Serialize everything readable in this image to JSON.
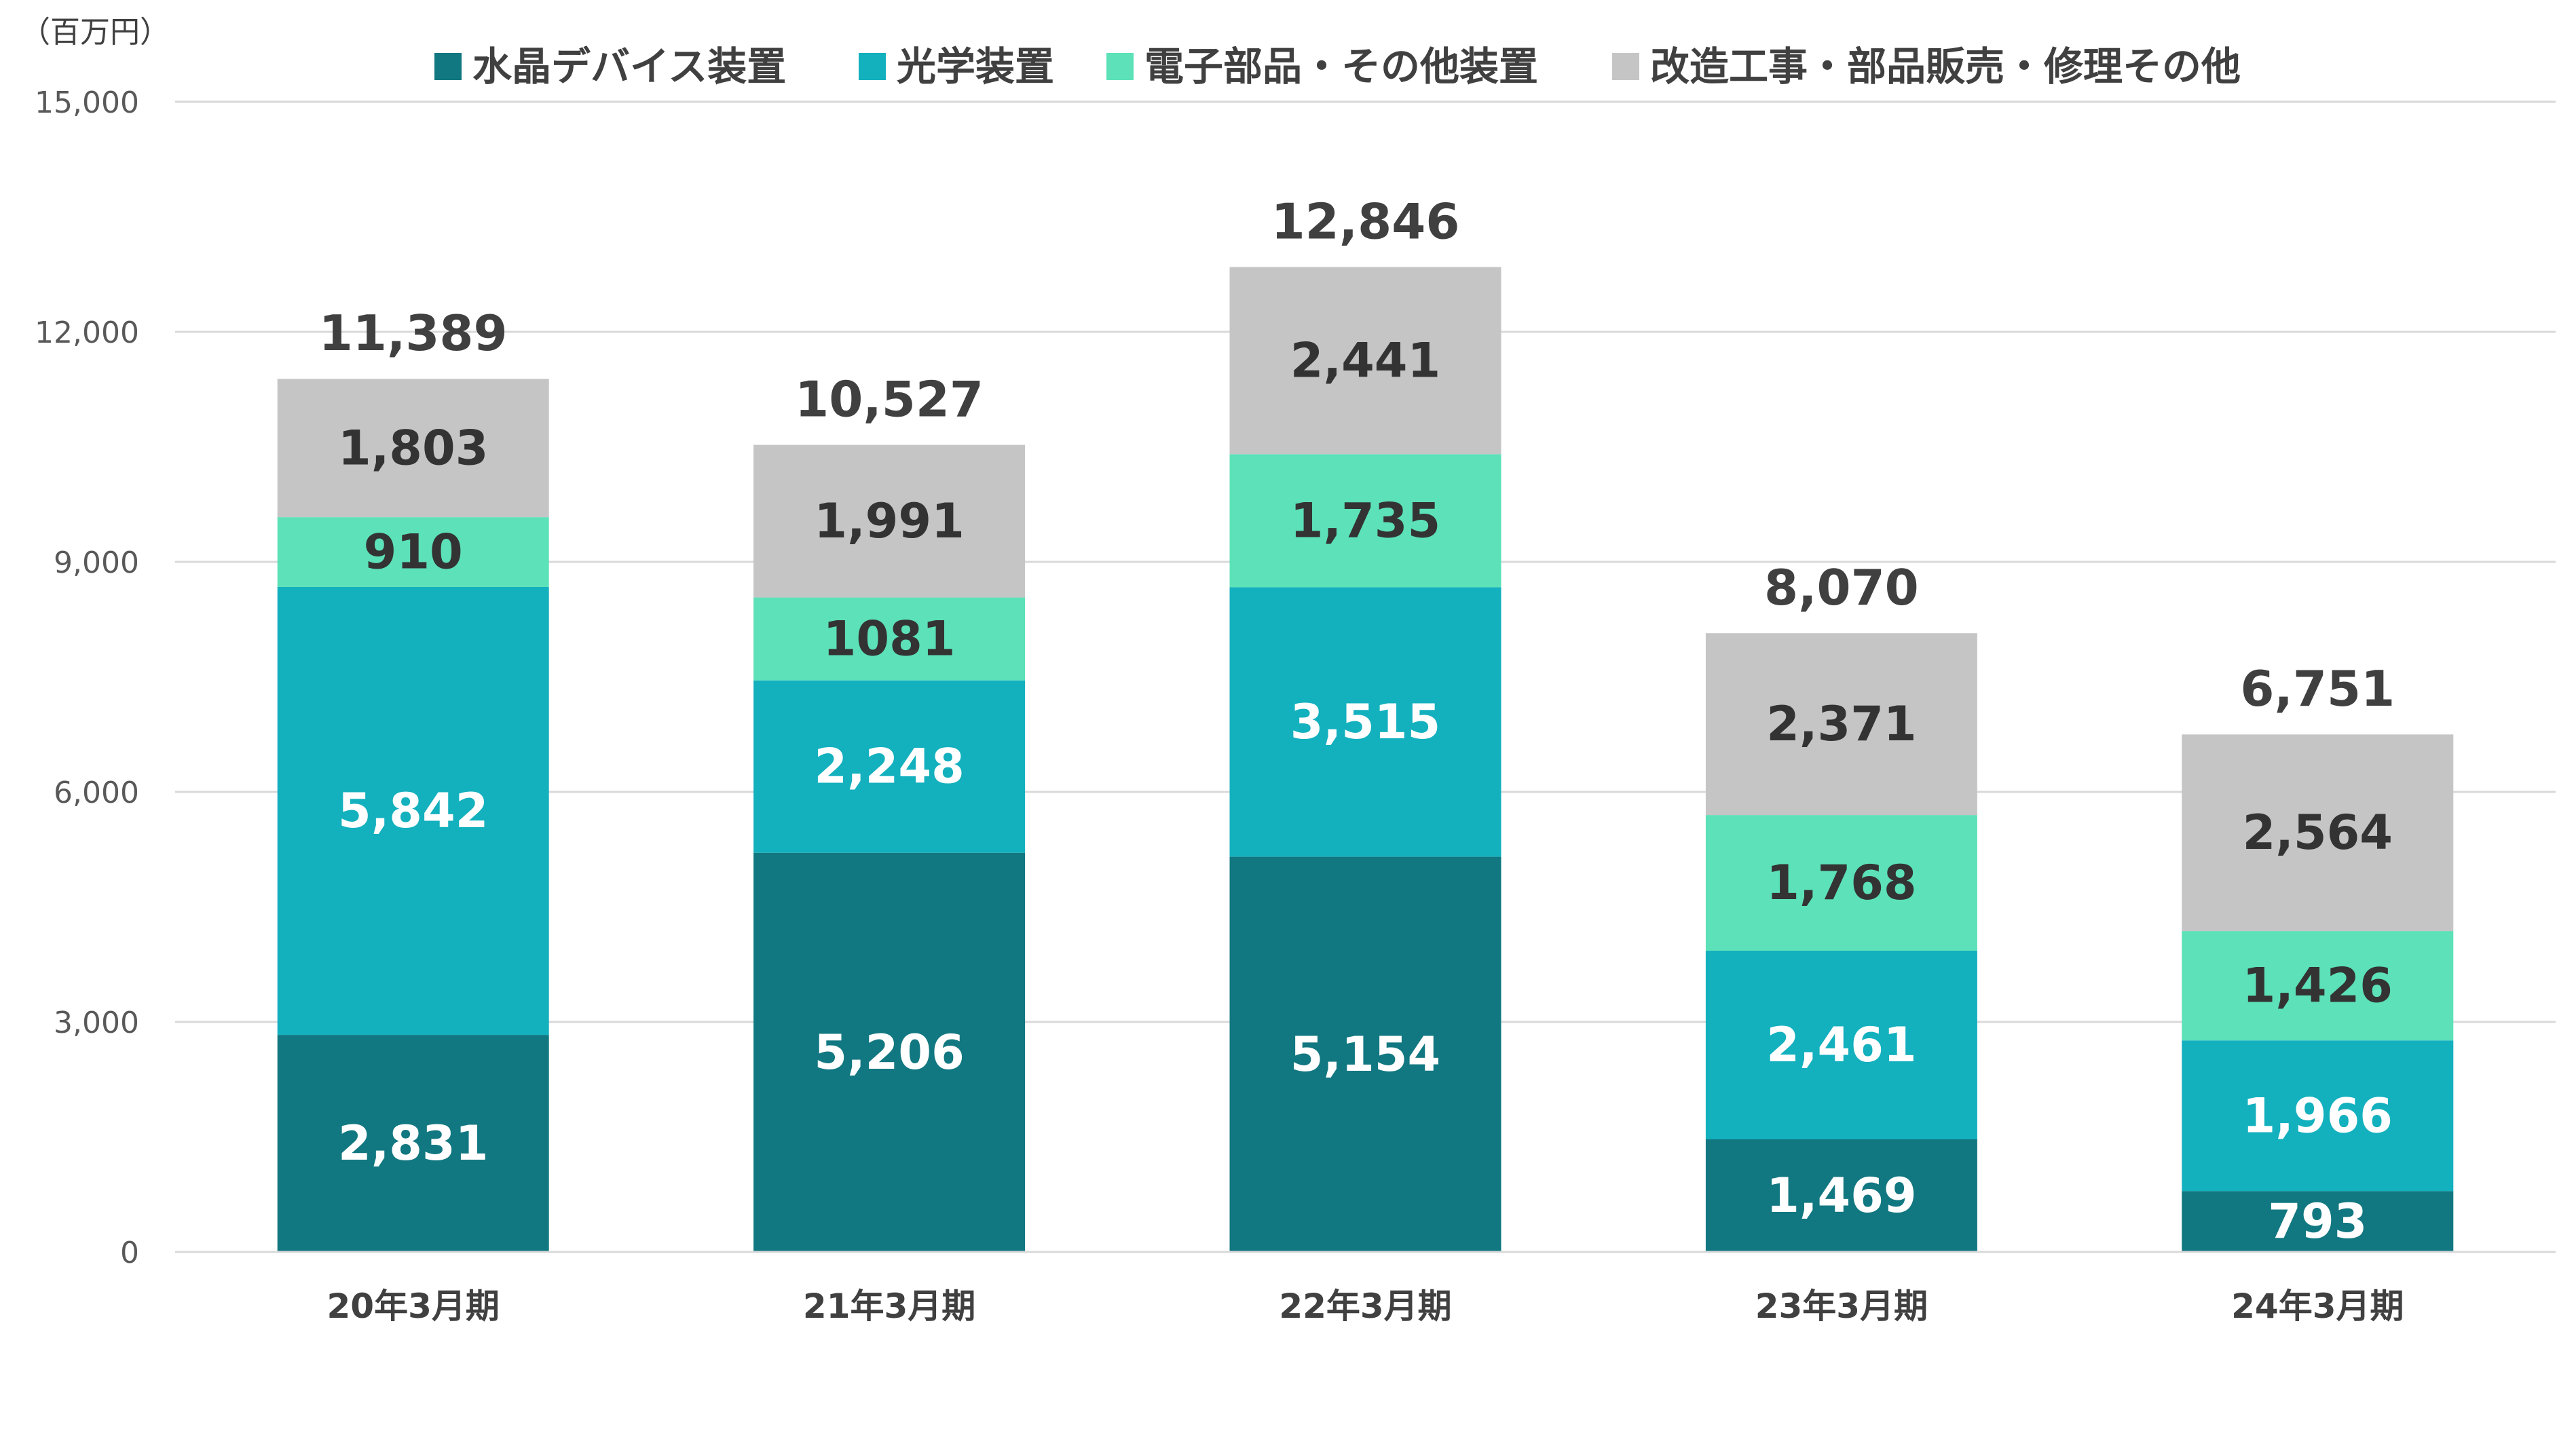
{
  "chart_data": {
    "type": "bar",
    "stacked": true,
    "unit_label": "（百万円）",
    "categories": [
      "20年3月期",
      "21年3月期",
      "22年3月期",
      "23年3月期",
      "24年3月期"
    ],
    "series": [
      {
        "name": "水晶デバイス装置",
        "color": "#117780",
        "label_color": "#ffffff",
        "values": [
          2831,
          5206,
          5154,
          1469,
          793
        ],
        "labels": [
          "2,831",
          "5,206",
          "5,154",
          "1,469",
          "793"
        ]
      },
      {
        "name": "光学装置",
        "color": "#13b0be",
        "label_color": "#ffffff",
        "values": [
          5842,
          2248,
          3515,
          2461,
          1966
        ],
        "labels": [
          "5,842",
          "2,248",
          "3,515",
          "2,461",
          "1,966"
        ]
      },
      {
        "name": "電子部品・その他装置",
        "color": "#5ce1b8",
        "label_color": "#333333",
        "values": [
          910,
          1081,
          1735,
          1768,
          1426
        ],
        "labels": [
          "910",
          "1081",
          "1,735",
          "1,768",
          "1,426"
        ]
      },
      {
        "name": "改造工事・部品販売・修理その他",
        "color": "#c5c5c5",
        "label_color": "#333333",
        "values": [
          1803,
          1991,
          2441,
          2371,
          2564
        ],
        "labels": [
          "1,803",
          "1,991",
          "2,441",
          "2,371",
          "2,564"
        ]
      }
    ],
    "totals": [
      11389,
      10527,
      12846,
      8070,
      6751
    ],
    "total_labels": [
      "11,389",
      "10,527",
      "12,846",
      "8,070",
      "6,751"
    ],
    "ylim": [
      0,
      15000
    ],
    "yticks": [
      0,
      3000,
      6000,
      9000,
      12000,
      15000
    ],
    "ytick_labels": [
      "0",
      "3,000",
      "6,000",
      "9,000",
      "12,000",
      "15,000"
    ],
    "grid": true,
    "legend_position": "top"
  }
}
